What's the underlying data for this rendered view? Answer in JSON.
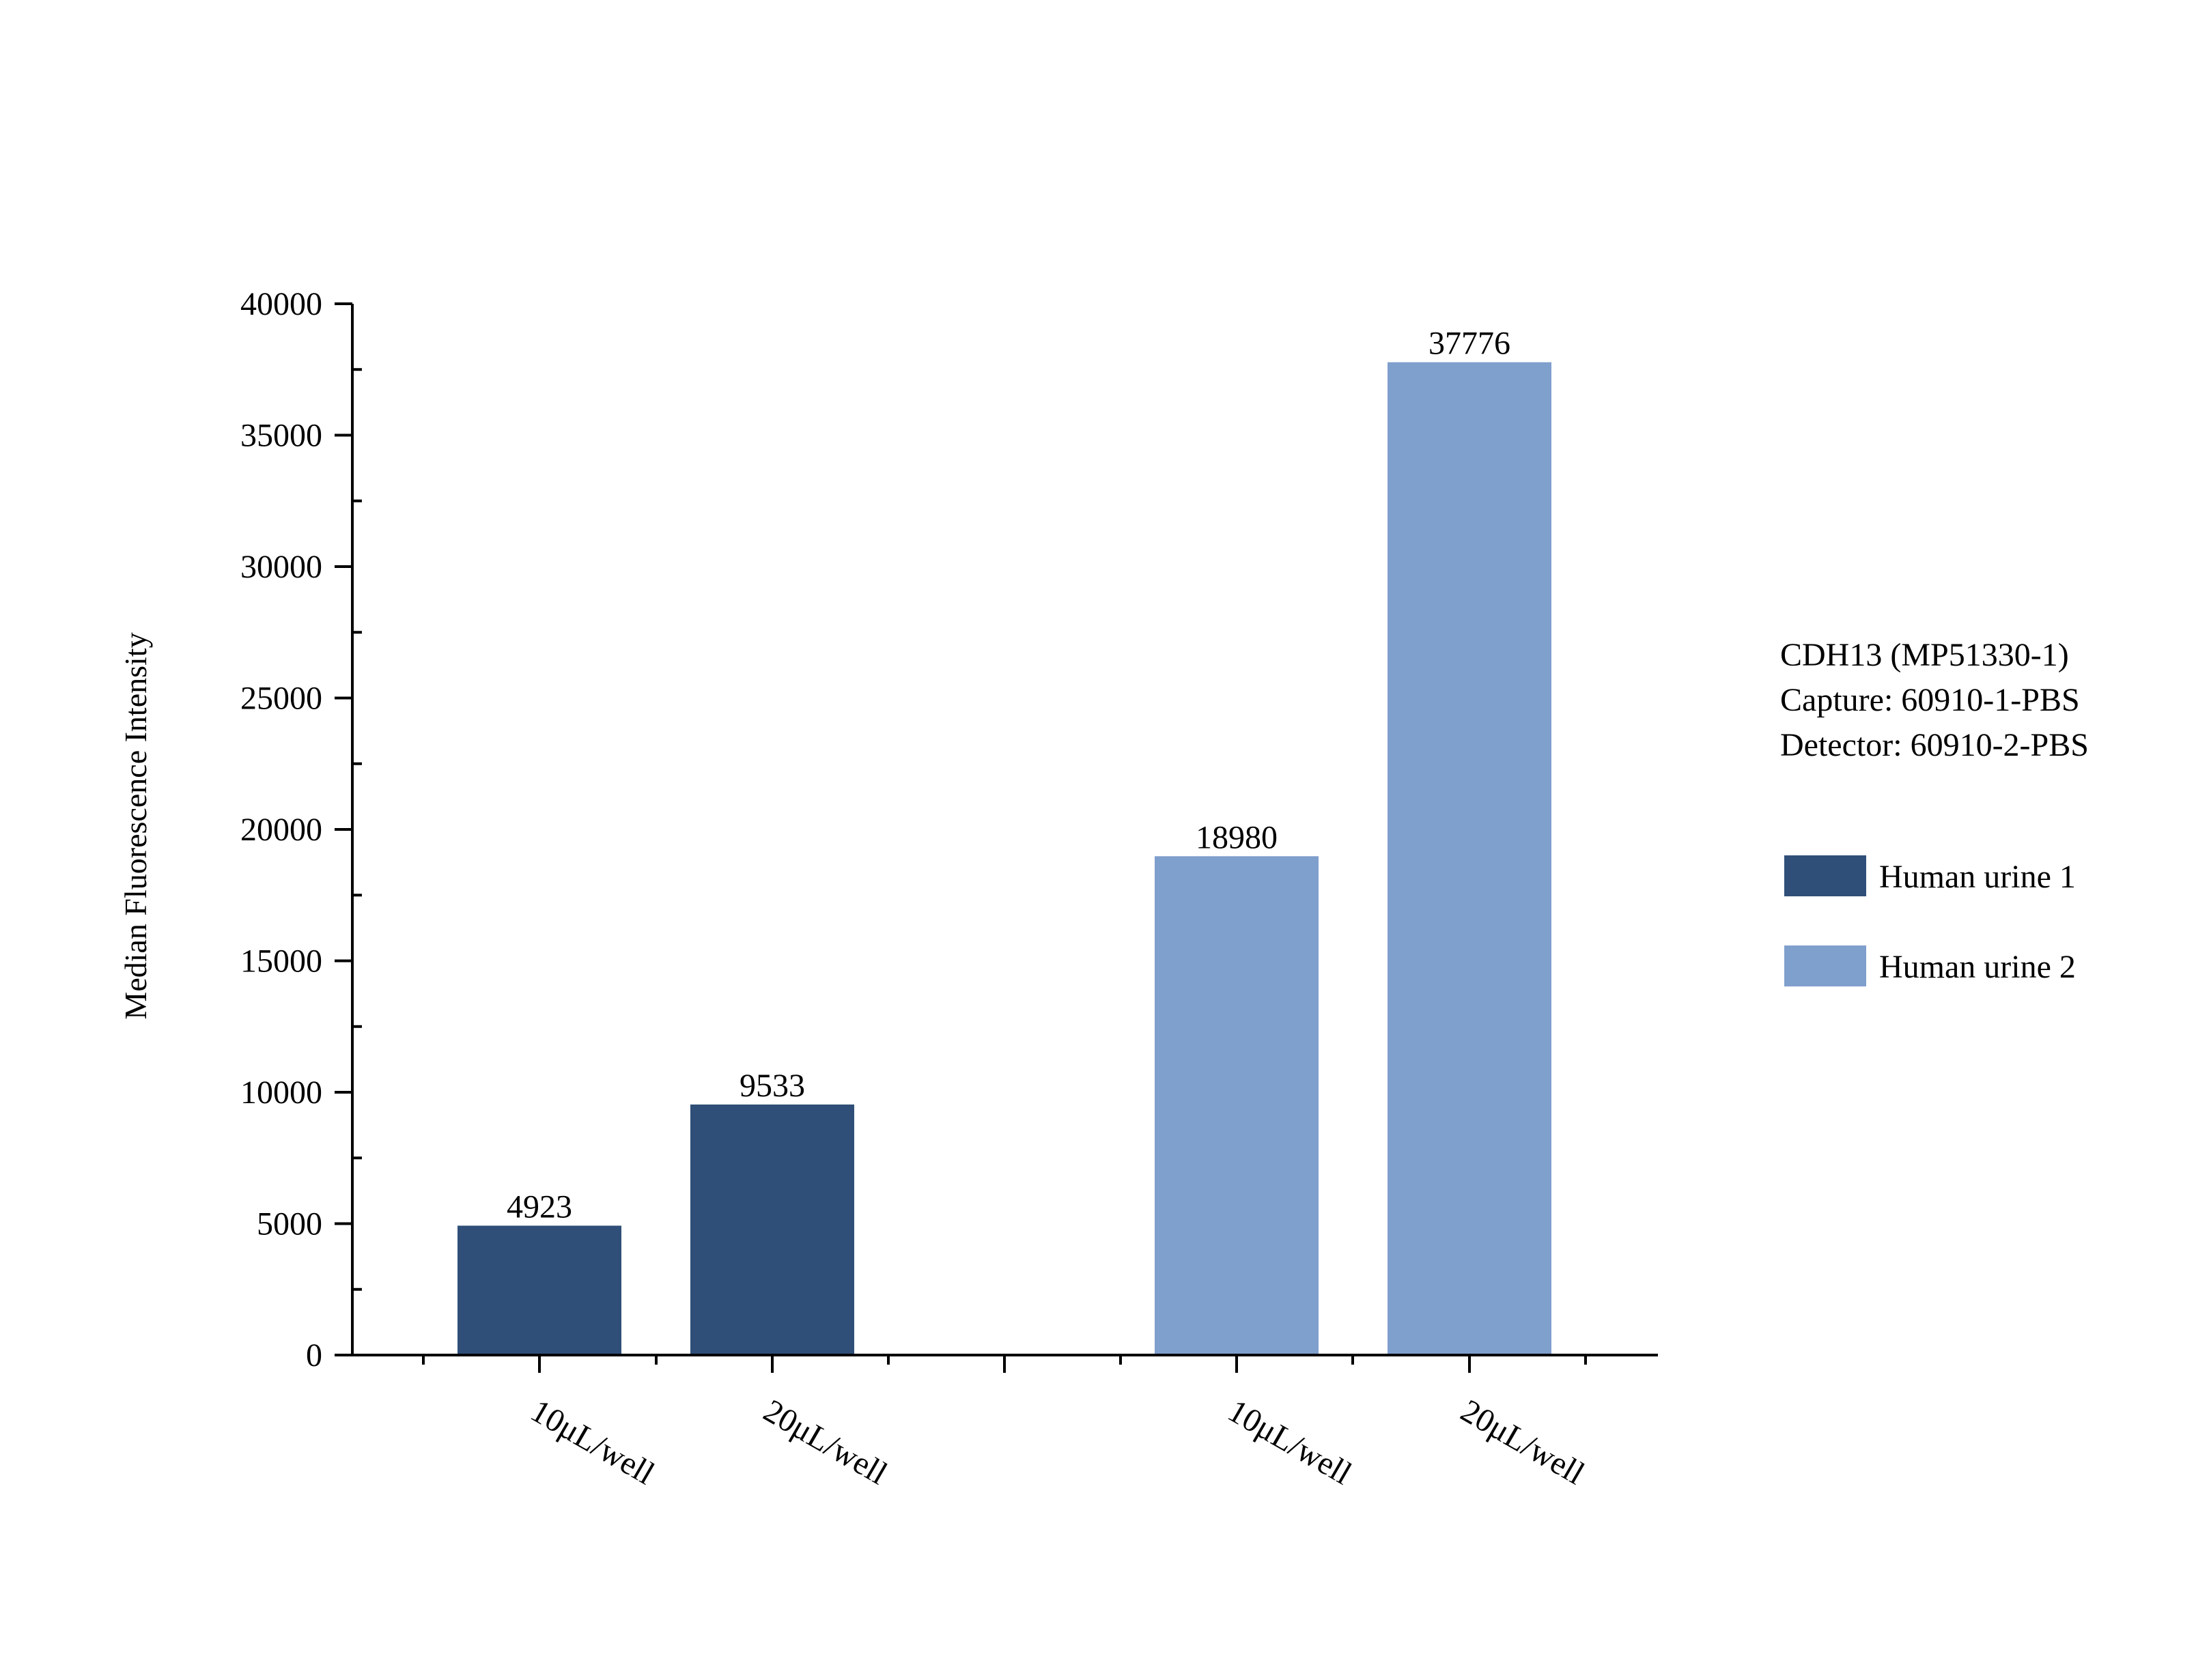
{
  "chart_data": {
    "type": "bar",
    "title": "",
    "xlabel": "",
    "ylabel": "Median Fluorescence Intensity",
    "ylim": [
      0,
      40000
    ],
    "yticks": [
      0,
      5000,
      10000,
      15000,
      20000,
      25000,
      30000,
      35000,
      40000
    ],
    "ytick_labels": [
      "0",
      "5000",
      "10000",
      "15000",
      "20000",
      "25000",
      "30000",
      "35000",
      "40000"
    ],
    "grid": false,
    "legend_position": "right",
    "annotation_lines": [
      "CDH13 (MP51330-1)",
      "Capture: 60910-1-PBS",
      "Detector: 60910-2-PBS"
    ],
    "series": [
      {
        "name": "Human urine 1",
        "color": "#2f4f78",
        "categories": [
          "10μL/well",
          "20μL/well"
        ],
        "values": [
          4923,
          9533
        ],
        "value_labels": [
          "4923",
          "9533"
        ]
      },
      {
        "name": "Human urine 2",
        "color": "#7f9fcd",
        "categories": [
          "10μL/well",
          "20μL/well"
        ],
        "values": [
          18980,
          37776
        ],
        "value_labels": [
          "18980",
          "37776"
        ]
      }
    ]
  }
}
